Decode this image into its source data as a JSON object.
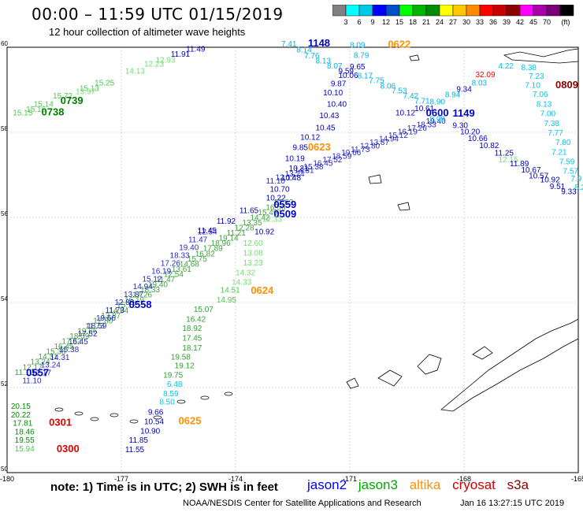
{
  "title": "00:00 – 11:59 UTC 01/15/2019",
  "subtitle": "12 hour collection of altimeter wave heights",
  "colorbar": {
    "colors": [
      "#808080",
      "#00ffff",
      "#00c8e6",
      "#0000ff",
      "#0050c8",
      "#00ff00",
      "#00b400",
      "#008c00",
      "#ffff00",
      "#ffc800",
      "#ff8c00",
      "#ff0000",
      "#c80000",
      "#8c0000",
      "#ff00ff",
      "#aa00aa",
      "#780078",
      "#000000"
    ],
    "labels": [
      "3",
      "6",
      "9",
      "12",
      "15",
      "18",
      "21",
      "24",
      "27",
      "30",
      "33",
      "36",
      "39",
      "42",
      "45",
      "70"
    ],
    "unit": "(ft)"
  },
  "axes": {
    "lon_ticks": [
      "-180",
      "-177",
      "-174",
      "-171",
      "-168",
      "-165"
    ],
    "lat_ticks": [
      "60",
      "58",
      "56",
      "54",
      "52",
      "50"
    ]
  },
  "observations": [
    {
      "v": "11.49",
      "c": "#0000c0",
      "lon": -175.3,
      "lat": 59.9
    },
    {
      "v": "11.91",
      "c": "#0000c0",
      "lon": -175.7,
      "lat": 59.78
    },
    {
      "v": "12.93",
      "c": "#70e070",
      "lon": -176.1,
      "lat": 59.64
    },
    {
      "v": "12.23",
      "c": "#70e070",
      "lon": -176.4,
      "lat": 59.55
    },
    {
      "v": "14.13",
      "c": "#70e070",
      "lon": -176.9,
      "lat": 59.38
    },
    {
      "v": "15.13",
      "c": "#50c850",
      "lon": -178.1,
      "lat": 58.97
    },
    {
      "v": "15.25",
      "c": "#50c850",
      "lon": -177.7,
      "lat": 59.1
    },
    {
      "v": "15.72",
      "c": "#50c850",
      "lon": -178.8,
      "lat": 58.8
    },
    {
      "v": "13.97",
      "c": "#70e070",
      "lon": -178.2,
      "lat": 58.9
    },
    {
      "v": "15.14",
      "c": "#50c850",
      "lon": -179.3,
      "lat": 58.6
    },
    {
      "v": "15.16",
      "c": "#50c850",
      "lon": -179.5,
      "lat": 58.48
    },
    {
      "v": "15.15",
      "c": "#50c850",
      "lon": -179.85,
      "lat": 58.4
    },
    {
      "v": "0739",
      "c": "#008000",
      "lon": -178.6,
      "lat": 58.67,
      "big": true
    },
    {
      "v": "0738",
      "c": "#008000",
      "lon": -179.1,
      "lat": 58.4,
      "big": true
    },
    {
      "v": "7.41",
      "c": "#00b4e6",
      "lon": -172.8,
      "lat": 60.02
    },
    {
      "v": "1148",
      "c": "#0000d0",
      "lon": -172.1,
      "lat": 60.02,
      "big": true
    },
    {
      "v": "8.14",
      "c": "#00b4e6",
      "lon": -172.4,
      "lat": 59.88
    },
    {
      "v": "7.76",
      "c": "#00b4e6",
      "lon": -172.2,
      "lat": 59.74
    },
    {
      "v": "8.13",
      "c": "#00b4e6",
      "lon": -171.9,
      "lat": 59.62
    },
    {
      "v": "8.09",
      "c": "#00b4e6",
      "lon": -171.0,
      "lat": 59.99
    },
    {
      "v": "0622",
      "c": "#ff9000",
      "lon": -170.0,
      "lat": 59.99,
      "big": true
    },
    {
      "v": "8.79",
      "c": "#00b4e6",
      "lon": -170.9,
      "lat": 59.75
    },
    {
      "v": "8.07",
      "c": "#00b4e6",
      "lon": -171.6,
      "lat": 59.5
    },
    {
      "v": "9.65",
      "c": "#0000c0",
      "lon": -171.0,
      "lat": 59.48
    },
    {
      "v": "9.59",
      "c": "#0000c0",
      "lon": -171.3,
      "lat": 59.38
    },
    {
      "v": "10.06",
      "c": "#0000c0",
      "lon": -171.3,
      "lat": 59.28
    },
    {
      "v": "8.17",
      "c": "#00b4e6",
      "lon": -170.8,
      "lat": 59.27
    },
    {
      "v": "7.75",
      "c": "#00b4e6",
      "lon": -170.5,
      "lat": 59.16
    },
    {
      "v": "9.87",
      "c": "#0000c0",
      "lon": -171.5,
      "lat": 59.08
    },
    {
      "v": "8.06",
      "c": "#00b4e6",
      "lon": -170.2,
      "lat": 59.03
    },
    {
      "v": "10.10",
      "c": "#0000c0",
      "lon": -171.7,
      "lat": 58.87
    },
    {
      "v": "7.53",
      "c": "#00b4e6",
      "lon": -169.9,
      "lat": 58.92
    },
    {
      "v": "7.42",
      "c": "#00b4e6",
      "lon": -169.6,
      "lat": 58.8
    },
    {
      "v": "10.40",
      "c": "#0000c0",
      "lon": -171.6,
      "lat": 58.6
    },
    {
      "v": "7.71",
      "c": "#00b4e6",
      "lon": -169.3,
      "lat": 58.68
    },
    {
      "v": "8.90",
      "c": "#00b4e6",
      "lon": -168.9,
      "lat": 58.66
    },
    {
      "v": "8.94",
      "c": "#00b4e6",
      "lon": -168.5,
      "lat": 58.82
    },
    {
      "v": "9.34",
      "c": "#0000c0",
      "lon": -168.2,
      "lat": 58.95
    },
    {
      "v": "8.03",
      "c": "#00b4e6",
      "lon": -167.8,
      "lat": 59.1
    },
    {
      "v": "32.09",
      "c": "#ff0000",
      "lon": -167.7,
      "lat": 59.3
    },
    {
      "v": "4.22",
      "c": "#00c8e6",
      "lon": -167.1,
      "lat": 59.5
    },
    {
      "v": "8.38",
      "c": "#00c8e6",
      "lon": -166.5,
      "lat": 59.46
    },
    {
      "v": "7.23",
      "c": "#00c8e6",
      "lon": -166.3,
      "lat": 59.26
    },
    {
      "v": "7.10",
      "c": "#00c8e6",
      "lon": -166.4,
      "lat": 59.05
    },
    {
      "v": "0809",
      "c": "#8c0000",
      "lon": -165.6,
      "lat": 59.04,
      "big": true
    },
    {
      "v": "7.06",
      "c": "#00c8e6",
      "lon": -166.2,
      "lat": 58.83
    },
    {
      "v": "8.13",
      "c": "#00c8e6",
      "lon": -166.1,
      "lat": 58.6
    },
    {
      "v": "7.00",
      "c": "#00c8e6",
      "lon": -166.0,
      "lat": 58.38
    },
    {
      "v": "7.38",
      "c": "#00c8e6",
      "lon": -165.9,
      "lat": 58.15
    },
    {
      "v": "7.77",
      "c": "#00c8e6",
      "lon": -165.8,
      "lat": 57.93
    },
    {
      "v": "7.80",
      "c": "#00c8e6",
      "lon": -165.6,
      "lat": 57.7
    },
    {
      "v": "7.21",
      "c": "#00c8e6",
      "lon": -165.7,
      "lat": 57.47
    },
    {
      "v": "7.59",
      "c": "#00c8e6",
      "lon": -165.5,
      "lat": 57.25
    },
    {
      "v": "7.57",
      "c": "#00c8e6",
      "lon": -165.4,
      "lat": 57.03
    },
    {
      "v": "7.9",
      "c": "#00c8e6",
      "lon": -165.2,
      "lat": 56.85
    },
    {
      "v": "8.2",
      "c": "#00c8e6",
      "lon": -165.1,
      "lat": 56.65
    },
    {
      "v": "10.43",
      "c": "#0000c0",
      "lon": -171.8,
      "lat": 58.33
    },
    {
      "v": "10.12",
      "c": "#0000c0",
      "lon": -169.8,
      "lat": 58.4
    },
    {
      "v": "10.61",
      "c": "#0000c0",
      "lon": -169.3,
      "lat": 58.5
    },
    {
      "v": "0600",
      "c": "#0000d0",
      "lon": -169.0,
      "lat": 58.38,
      "big": true
    },
    {
      "v": "1149",
      "c": "#0000d0",
      "lon": -168.3,
      "lat": 58.37,
      "big": true
    },
    {
      "v": "8.99",
      "c": "#00b4e6",
      "lon": -168.9,
      "lat": 58.25
    },
    {
      "v": "9.30",
      "c": "#0000c0",
      "lon": -168.3,
      "lat": 58.1
    },
    {
      "v": "10.45",
      "c": "#0000c0",
      "lon": -171.9,
      "lat": 58.05
    },
    {
      "v": "10.20",
      "c": "#0000c0",
      "lon": -168.1,
      "lat": 57.95
    },
    {
      "v": "10.66",
      "c": "#0000c0",
      "lon": -167.9,
      "lat": 57.8
    },
    {
      "v": "10.12",
      "c": "#0000c0",
      "lon": -172.3,
      "lat": 57.82
    },
    {
      "v": "10.82",
      "c": "#0000c0",
      "lon": -167.6,
      "lat": 57.63
    },
    {
      "v": "9.85",
      "c": "#0000c0",
      "lon": -172.5,
      "lat": 57.58
    },
    {
      "v": "0623",
      "c": "#ff9000",
      "lon": -172.1,
      "lat": 57.57,
      "big": true
    },
    {
      "v": "11.25",
      "c": "#0000c0",
      "lon": -167.2,
      "lat": 57.45
    },
    {
      "v": "10.19",
      "c": "#0000c0",
      "lon": -172.7,
      "lat": 57.32
    },
    {
      "v": "12.15",
      "c": "#70e070",
      "lon": -167.1,
      "lat": 57.3
    },
    {
      "v": "11.89",
      "c": "#0000c0",
      "lon": -166.8,
      "lat": 57.2
    },
    {
      "v": "10.31",
      "c": "#0000c0",
      "lon": -172.6,
      "lat": 57.09
    },
    {
      "v": "10.67",
      "c": "#0000c0",
      "lon": -166.5,
      "lat": 57.06
    },
    {
      "v": "10.57",
      "c": "#0000c0",
      "lon": -166.3,
      "lat": 56.92
    },
    {
      "v": "10.48",
      "c": "#0000c0",
      "lon": -172.8,
      "lat": 56.87
    },
    {
      "v": "10.92",
      "c": "#0000c0",
      "lon": -166.0,
      "lat": 56.82
    },
    {
      "v": "9.51",
      "c": "#0000c0",
      "lon": -165.75,
      "lat": 56.67
    },
    {
      "v": "9.33",
      "c": "#0000c0",
      "lon": -165.45,
      "lat": 56.55
    },
    {
      "v": "10.70",
      "c": "#0000c0",
      "lon": -173.1,
      "lat": 56.6
    },
    {
      "v": "10.22",
      "c": "#0000c0",
      "lon": -173.2,
      "lat": 56.4
    },
    {
      "v": "0559",
      "c": "#0000d0",
      "lon": -173.0,
      "lat": 56.22,
      "big": true
    },
    {
      "v": "0509",
      "c": "#0000d0",
      "lon": -173.0,
      "lat": 56.0,
      "big": true
    },
    {
      "v": "11.65",
      "c": "#0000c0",
      "lon": -173.9,
      "lat": 56.1
    },
    {
      "v": "11.92",
      "c": "#0000c0",
      "lon": -174.5,
      "lat": 55.85
    },
    {
      "v": "12.33",
      "c": "#70e070",
      "lon": -173.3,
      "lat": 55.9
    },
    {
      "v": "11.45",
      "c": "#0000c0",
      "lon": -175.0,
      "lat": 55.63
    },
    {
      "v": "10.92",
      "c": "#0000c0",
      "lon": -173.5,
      "lat": 55.6
    },
    {
      "v": "12.60",
      "c": "#70e070",
      "lon": -173.8,
      "lat": 55.33
    },
    {
      "v": "13.08",
      "c": "#70e070",
      "lon": -173.8,
      "lat": 55.1
    },
    {
      "v": "13.23",
      "c": "#70e070",
      "lon": -173.8,
      "lat": 54.87
    },
    {
      "v": "14.32",
      "c": "#70e070",
      "lon": -174.0,
      "lat": 54.64
    },
    {
      "v": "14.33",
      "c": "#70e070",
      "lon": -174.1,
      "lat": 54.42
    },
    {
      "v": "14.51",
      "c": "#50c850",
      "lon": -174.4,
      "lat": 54.23
    },
    {
      "v": "0624",
      "c": "#ff9000",
      "lon": -173.6,
      "lat": 54.2,
      "big": true
    },
    {
      "v": "14.95",
      "c": "#50c850",
      "lon": -174.5,
      "lat": 54.0
    },
    {
      "v": "15.07",
      "c": "#30a030",
      "lon": -175.1,
      "lat": 53.78
    },
    {
      "v": "16.42",
      "c": "#30a030",
      "lon": -175.3,
      "lat": 53.55
    },
    {
      "v": "18.92",
      "c": "#30a030",
      "lon": -175.4,
      "lat": 53.33
    },
    {
      "v": "17.45",
      "c": "#30a030",
      "lon": -175.4,
      "lat": 53.1
    },
    {
      "v": "18.17",
      "c": "#30a030",
      "lon": -175.4,
      "lat": 52.87
    },
    {
      "v": "19.58",
      "c": "#30a030",
      "lon": -175.7,
      "lat": 52.66
    },
    {
      "v": "19.12",
      "c": "#30a030",
      "lon": -175.6,
      "lat": 52.45
    },
    {
      "v": "19.75",
      "c": "#30a030",
      "lon": -175.9,
      "lat": 52.23
    },
    {
      "v": "6.48",
      "c": "#00c8e6",
      "lon": -175.8,
      "lat": 52.02
    },
    {
      "v": "8.59",
      "c": "#00c8e6",
      "lon": -175.9,
      "lat": 51.8
    },
    {
      "v": "8.50",
      "c": "#00c8e6",
      "lon": -176.0,
      "lat": 51.6
    },
    {
      "v": "9.66",
      "c": "#0000c0",
      "lon": -176.3,
      "lat": 51.36
    },
    {
      "v": "10.54",
      "c": "#0000c0",
      "lon": -176.4,
      "lat": 51.14
    },
    {
      "v": "0625",
      "c": "#ff9000",
      "lon": -175.5,
      "lat": 51.14,
      "big": true
    },
    {
      "v": "10.90",
      "c": "#0000c0",
      "lon": -176.5,
      "lat": 50.92
    },
    {
      "v": "11.85",
      "c": "#0000c0",
      "lon": -176.8,
      "lat": 50.7
    },
    {
      "v": "11.55",
      "c": "#0000c0",
      "lon": -176.9,
      "lat": 50.48
    },
    {
      "v": "0558",
      "c": "#0000d0",
      "lon": -176.8,
      "lat": 53.87,
      "big": true
    },
    {
      "v": "0557",
      "c": "#0000d0",
      "lon": -179.5,
      "lat": 52.27,
      "big": true
    },
    {
      "v": "20.15",
      "c": "#008c00",
      "lon": -179.9,
      "lat": 51.5
    },
    {
      "v": "20.22",
      "c": "#008c00",
      "lon": -179.9,
      "lat": 51.3
    },
    {
      "v": "17.81",
      "c": "#008c00",
      "lon": -179.85,
      "lat": 51.1
    },
    {
      "v": "18.46",
      "c": "#008c00",
      "lon": -179.8,
      "lat": 50.9
    },
    {
      "v": "19.55",
      "c": "#008c00",
      "lon": -179.8,
      "lat": 50.7
    },
    {
      "v": "15.94",
      "c": "#50c850",
      "lon": -179.8,
      "lat": 50.5
    },
    {
      "v": "0301",
      "c": "#e00000",
      "lon": -178.9,
      "lat": 51.1,
      "big": true
    },
    {
      "v": "0300",
      "c": "#e00000",
      "lon": -178.7,
      "lat": 50.48,
      "big": true
    }
  ],
  "note": "note: 1) Time is in UTC; 2) SWH is in feet",
  "legend": [
    {
      "name": "jason2",
      "color": "#0000ff"
    },
    {
      "name": "jason3",
      "color": "#00aa00"
    },
    {
      "name": "altika",
      "color": "#ff9000"
    },
    {
      "name": "cryosat",
      "color": "#d00000"
    },
    {
      "name": "s3a",
      "color": "#8c0000"
    }
  ],
  "credit": "NOAA/NESDIS Center for Satellite Applications and Research",
  "timestamp": "Jan 16 13:27:15 UTC 2019"
}
